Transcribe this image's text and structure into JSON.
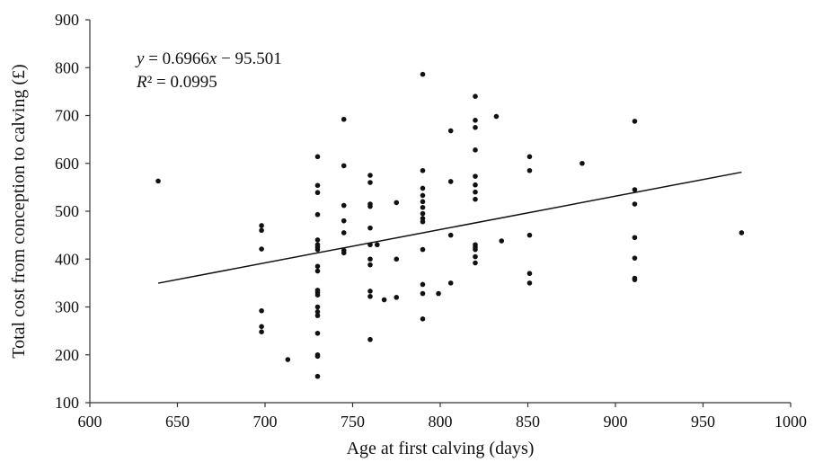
{
  "chart_data": {
    "type": "scatter",
    "xlabel": "Age at first calving (days)",
    "ylabel": "Total cost from conception to calving (£)",
    "xlim": [
      600,
      1000
    ],
    "ylim": [
      100,
      900
    ],
    "xticks": [
      600,
      650,
      700,
      750,
      800,
      850,
      900,
      950,
      1000
    ],
    "yticks": [
      100,
      200,
      300,
      400,
      500,
      600,
      700,
      800,
      900
    ],
    "grid": false,
    "point_color": "#111111",
    "annotations": {
      "equation": "y = 0.6966x − 95.501",
      "r_squared": "R² = 0.0995"
    },
    "trendline": {
      "slope": 0.6966,
      "intercept": -95.501
    },
    "points": [
      [
        639,
        563
      ],
      [
        698,
        470
      ],
      [
        698,
        460
      ],
      [
        698,
        421
      ],
      [
        698,
        292
      ],
      [
        698,
        259
      ],
      [
        698,
        248
      ],
      [
        713,
        190
      ],
      [
        730,
        614
      ],
      [
        730,
        554
      ],
      [
        730,
        539
      ],
      [
        730,
        493
      ],
      [
        730,
        440
      ],
      [
        730,
        430
      ],
      [
        730,
        425
      ],
      [
        730,
        420
      ],
      [
        730,
        385
      ],
      [
        730,
        375
      ],
      [
        730,
        335
      ],
      [
        730,
        330
      ],
      [
        730,
        325
      ],
      [
        730,
        300
      ],
      [
        730,
        290
      ],
      [
        730,
        282
      ],
      [
        730,
        245
      ],
      [
        730,
        200
      ],
      [
        730,
        197
      ],
      [
        730,
        155
      ],
      [
        745,
        692
      ],
      [
        745,
        595
      ],
      [
        745,
        512
      ],
      [
        745,
        480
      ],
      [
        745,
        455
      ],
      [
        745,
        418
      ],
      [
        745,
        413
      ],
      [
        760,
        575
      ],
      [
        760,
        560
      ],
      [
        760,
        515
      ],
      [
        760,
        510
      ],
      [
        760,
        465
      ],
      [
        760,
        430
      ],
      [
        760,
        400
      ],
      [
        760,
        388
      ],
      [
        760,
        333
      ],
      [
        760,
        322
      ],
      [
        760,
        232
      ],
      [
        764,
        430
      ],
      [
        768,
        315
      ],
      [
        775,
        518
      ],
      [
        775,
        400
      ],
      [
        775,
        320
      ],
      [
        790,
        786
      ],
      [
        790,
        585
      ],
      [
        790,
        548
      ],
      [
        790,
        533
      ],
      [
        790,
        520
      ],
      [
        790,
        508
      ],
      [
        790,
        495
      ],
      [
        790,
        485
      ],
      [
        790,
        478
      ],
      [
        790,
        420
      ],
      [
        790,
        347
      ],
      [
        790,
        328
      ],
      [
        790,
        275
      ],
      [
        799,
        328
      ],
      [
        806,
        668
      ],
      [
        806,
        562
      ],
      [
        806,
        450
      ],
      [
        806,
        350
      ],
      [
        820,
        740
      ],
      [
        820,
        690
      ],
      [
        820,
        675
      ],
      [
        820,
        628
      ],
      [
        820,
        573
      ],
      [
        820,
        555
      ],
      [
        820,
        540
      ],
      [
        820,
        525
      ],
      [
        820,
        430
      ],
      [
        820,
        425
      ],
      [
        820,
        420
      ],
      [
        820,
        405
      ],
      [
        820,
        392
      ],
      [
        832,
        698
      ],
      [
        835,
        438
      ],
      [
        851,
        614
      ],
      [
        851,
        585
      ],
      [
        851,
        450
      ],
      [
        851,
        370
      ],
      [
        851,
        350
      ],
      [
        881,
        600
      ],
      [
        911,
        688
      ],
      [
        911,
        545
      ],
      [
        911,
        515
      ],
      [
        911,
        445
      ],
      [
        911,
        402
      ],
      [
        911,
        360
      ],
      [
        911,
        357
      ],
      [
        972,
        455
      ]
    ]
  }
}
